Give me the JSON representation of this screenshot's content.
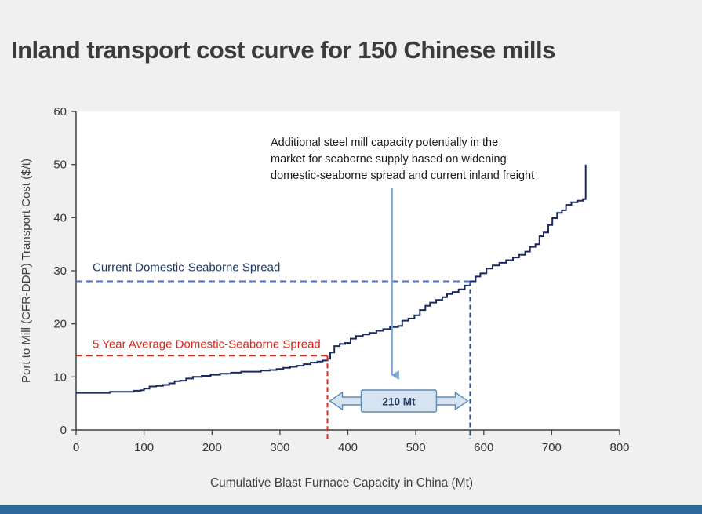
{
  "page": {
    "title": "Inland transport cost curve for 150 Chinese mills",
    "background_color": "#f0f0f0",
    "footer_color": "#2d6a9b"
  },
  "chart_data": {
    "type": "line",
    "title": "Inland transport cost curve for 150 Chinese mills",
    "xlabel": "Cumulative Blast Furnace Capacity in China (Mt)",
    "ylabel": "Port to Mill (CFR-DDP) Transport Cost ($/t)",
    "xlim": [
      0,
      800
    ],
    "ylim": [
      0,
      60
    ],
    "x_ticks": [
      0,
      100,
      200,
      300,
      400,
      500,
      600,
      700,
      800
    ],
    "y_ticks": [
      0,
      10,
      20,
      30,
      40,
      50,
      60
    ],
    "grid": false,
    "line_color": "#1b2a5e",
    "series": [
      {
        "name": "Inland transport cost curve",
        "step": true,
        "points": [
          [
            0,
            7
          ],
          [
            30,
            7
          ],
          [
            50,
            7.2
          ],
          [
            70,
            7.2
          ],
          [
            85,
            7.4
          ],
          [
            95,
            7.5
          ],
          [
            100,
            7.8
          ],
          [
            108,
            8.2
          ],
          [
            118,
            8.3
          ],
          [
            128,
            8.5
          ],
          [
            137,
            8.8
          ],
          [
            145,
            9.2
          ],
          [
            153,
            9.3
          ],
          [
            162,
            9.7
          ],
          [
            172,
            10
          ],
          [
            185,
            10.2
          ],
          [
            198,
            10.4
          ],
          [
            212,
            10.6
          ],
          [
            228,
            10.8
          ],
          [
            243,
            11
          ],
          [
            258,
            11
          ],
          [
            272,
            11.2
          ],
          [
            285,
            11.3
          ],
          [
            295,
            11.5
          ],
          [
            305,
            11.7
          ],
          [
            315,
            11.9
          ],
          [
            325,
            12.1
          ],
          [
            335,
            12.4
          ],
          [
            345,
            12.7
          ],
          [
            355,
            12.9
          ],
          [
            363,
            13.1
          ],
          [
            370,
            13.4
          ],
          [
            374,
            14.6
          ],
          [
            380,
            15.8
          ],
          [
            388,
            16.2
          ],
          [
            396,
            16.4
          ],
          [
            404,
            17.2
          ],
          [
            412,
            17.7
          ],
          [
            422,
            18
          ],
          [
            432,
            18.3
          ],
          [
            442,
            18.7
          ],
          [
            452,
            19
          ],
          [
            462,
            19.4
          ],
          [
            474,
            19.6
          ],
          [
            480,
            20.6
          ],
          [
            489,
            21
          ],
          [
            498,
            21.6
          ],
          [
            506,
            22.6
          ],
          [
            514,
            23.4
          ],
          [
            521,
            24
          ],
          [
            530,
            24.5
          ],
          [
            539,
            25
          ],
          [
            546,
            25.6
          ],
          [
            554,
            26
          ],
          [
            563,
            26.5
          ],
          [
            572,
            27.2
          ],
          [
            580,
            28
          ],
          [
            588,
            28.9
          ],
          [
            595,
            29.5
          ],
          [
            604,
            30.4
          ],
          [
            613,
            31
          ],
          [
            623,
            31.5
          ],
          [
            633,
            32
          ],
          [
            643,
            32.5
          ],
          [
            652,
            33
          ],
          [
            661,
            33.6
          ],
          [
            668,
            34.5
          ],
          [
            676,
            35
          ],
          [
            682,
            36.5
          ],
          [
            688,
            37.2
          ],
          [
            695,
            38.6
          ],
          [
            701,
            39.9
          ],
          [
            708,
            40.9
          ],
          [
            715,
            41.4
          ],
          [
            721,
            42.4
          ],
          [
            729,
            42.9
          ],
          [
            738,
            43.2
          ],
          [
            746,
            43.5
          ],
          [
            750,
            50
          ]
        ]
      }
    ],
    "annotations": {
      "current_spread": {
        "label": "Current Domestic-Seaborne Spread",
        "y": 28,
        "x_end": 580,
        "line_color": "#4472c4",
        "label_color": "#1f3864"
      },
      "five_year_spread": {
        "label": "5 Year Average Domestic-Seaborne Spread",
        "y": 14,
        "x_end": 370,
        "line_color": "#e8251d",
        "label_color": "#d9261c"
      },
      "range_marker": {
        "label": "210 Mt",
        "x_start": 370,
        "x_end": 580,
        "label_color": "#1f3864",
        "fill": "#d6e4f2",
        "stroke": "#5f8ab5"
      },
      "note": {
        "lines": [
          "Additional steel mill capacity potentially in the",
          "market for seaborne supply based on widening",
          "domestic-seaborne spread and current inland freight"
        ],
        "arrow_x": 465,
        "arrow_color": "#7ea6d8",
        "text_color": "#1a1a1a"
      }
    }
  }
}
